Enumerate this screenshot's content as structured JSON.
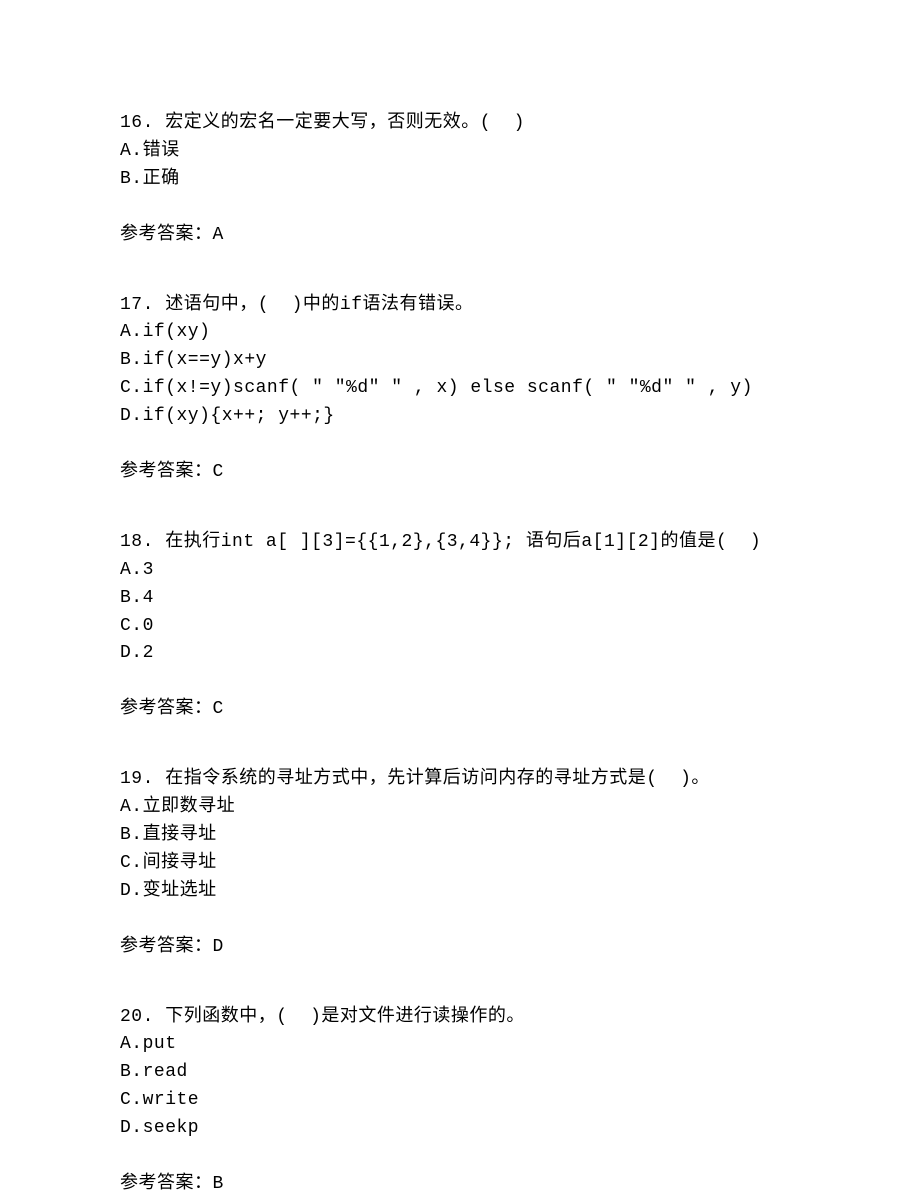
{
  "questions": [
    {
      "number": "16.",
      "text": "宏定义的宏名一定要大写，否则无效。(  )",
      "options": [
        "A.错误",
        "B.正确"
      ],
      "answer_label": "参考答案：",
      "answer_value": "A"
    },
    {
      "number": "17.",
      "text": "述语句中，(  )中的if语法有错误。",
      "options": [
        "A.if(xy)",
        "B.if(x==y)x+y",
        "C.if(x!=y)scanf( \" \"%d\" \" , x)  else scanf( \" \"%d\" \" , y)",
        "D.if(xy){x++; y++;}"
      ],
      "answer_label": "参考答案：",
      "answer_value": "C"
    },
    {
      "number": "18.",
      "text": "在执行int a[ ][3]={{1,2},{3,4}}; 语句后a[1][2]的值是(  )",
      "options": [
        "A.3",
        "B.4",
        "C.0",
        "D.2"
      ],
      "answer_label": "参考答案：",
      "answer_value": "C"
    },
    {
      "number": "19.",
      "text": "在指令系统的寻址方式中，先计算后访问内存的寻址方式是(  )。",
      "options": [
        "A.立即数寻址",
        "B.直接寻址",
        "C.间接寻址",
        "D.变址选址"
      ],
      "answer_label": "参考答案：",
      "answer_value": "D"
    },
    {
      "number": "20.",
      "text": "下列函数中，(  )是对文件进行读操作的。",
      "options": [
        "A.put",
        "B.read",
        "C.write",
        "D.seekp"
      ],
      "answer_label": "参考答案：",
      "answer_value": "B"
    }
  ]
}
